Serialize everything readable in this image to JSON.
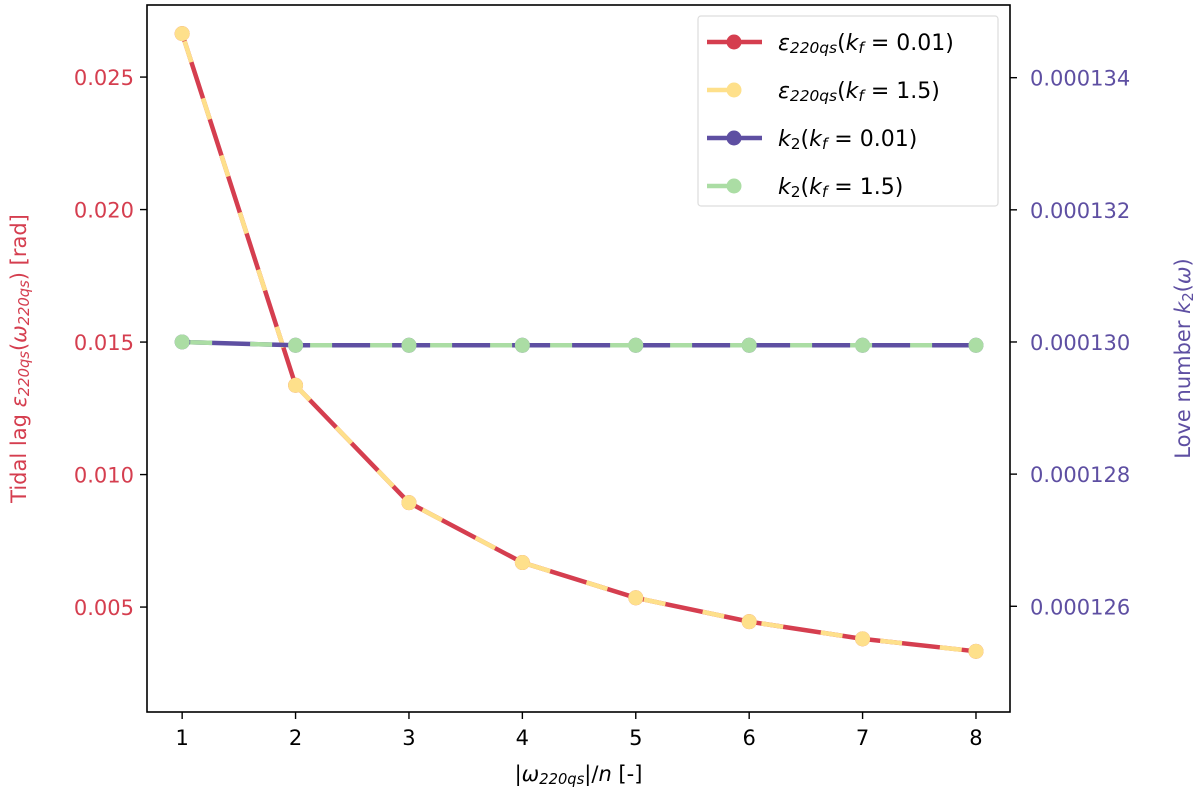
{
  "chart_data": {
    "type": "line",
    "x": [
      1,
      2,
      3,
      4,
      5,
      6,
      7,
      8
    ],
    "xlim": [
      0.69,
      8.3
    ],
    "xticks": [
      "1",
      "2",
      "3",
      "4",
      "5",
      "6",
      "7",
      "8"
    ],
    "xlabel": [
      {
        "t": "|"
      },
      {
        "t": "ω",
        "i": true
      },
      {
        "t": "220qs",
        "i": true,
        "sub": true
      },
      {
        "t": "|/"
      },
      {
        "t": "n",
        "i": true
      },
      {
        "t": " [-]"
      }
    ],
    "left_axis": {
      "ylim": [
        0.00104,
        0.02772
      ],
      "ticks": [
        0.005,
        0.01,
        0.015,
        0.02,
        0.025
      ],
      "tick_labels": [
        "0.005",
        "0.010",
        "0.015",
        "0.020",
        "0.025"
      ],
      "color": "#d53e4f",
      "label": [
        {
          "t": "Tidal lag "
        },
        {
          "t": "ε",
          "i": true
        },
        {
          "t": "220qs",
          "i": true,
          "sub": true
        },
        {
          "t": "("
        },
        {
          "t": "ω",
          "i": true
        },
        {
          "t": "220qs",
          "i": true,
          "sub": true
        },
        {
          "t": ") [rad]"
        }
      ]
    },
    "right_axis": {
      "ylim": [
        0.0001244,
        0.0001351
      ],
      "ticks": [
        0.000126,
        0.000128,
        0.00013,
        0.000132,
        0.000134
      ],
      "tick_labels": [
        "0.000126",
        "0.000128",
        "0.000130",
        "0.000132",
        "0.000134"
      ],
      "color": "#5e4fa2",
      "label": [
        {
          "t": "Love number "
        },
        {
          "t": "k",
          "i": true
        },
        {
          "t": "2",
          "sub": true
        },
        {
          "t": "("
        },
        {
          "t": "ω",
          "i": true
        },
        {
          "t": ")"
        }
      ]
    },
    "series": [
      {
        "name": [
          {
            "t": "ε",
            "i": true
          },
          {
            "t": "220qs",
            "i": true,
            "sub": true
          },
          {
            "t": "("
          },
          {
            "t": "k",
            "i": true
          },
          {
            "t": "f",
            "i": true,
            "sub": true
          },
          {
            "t": " = 0.01)"
          }
        ],
        "axis": "left",
        "color": "#d53e4f",
        "style": "solid",
        "values": [
          0.02664,
          0.01337,
          0.00894,
          0.00668,
          0.00535,
          0.00445,
          0.0038,
          0.00333
        ]
      },
      {
        "name": [
          {
            "t": "ε",
            "i": true
          },
          {
            "t": "220qs",
            "i": true,
            "sub": true
          },
          {
            "t": "("
          },
          {
            "t": "k",
            "i": true
          },
          {
            "t": "f",
            "i": true,
            "sub": true
          },
          {
            "t": " = 1.5)"
          }
        ],
        "axis": "left",
        "color": "#fee08b",
        "style": "dashed",
        "values": [
          0.02664,
          0.01337,
          0.00894,
          0.00668,
          0.00535,
          0.00445,
          0.0038,
          0.00333
        ]
      },
      {
        "name": [
          {
            "t": "k",
            "i": true
          },
          {
            "t": "2",
            "sub": true
          },
          {
            "t": "("
          },
          {
            "t": "k",
            "i": true
          },
          {
            "t": "f",
            "i": true,
            "sub": true
          },
          {
            "t": " = 0.01)"
          }
        ],
        "axis": "right",
        "color": "#5e4fa2",
        "style": "solid",
        "values": [
          0.00013,
          0.00012995,
          0.00012995,
          0.00012995,
          0.00012995,
          0.00012995,
          0.00012995,
          0.00012995
        ]
      },
      {
        "name": [
          {
            "t": "k",
            "i": true
          },
          {
            "t": "2",
            "sub": true
          },
          {
            "t": "("
          },
          {
            "t": "k",
            "i": true
          },
          {
            "t": "f",
            "i": true,
            "sub": true
          },
          {
            "t": " = 1.5)"
          }
        ],
        "axis": "right",
        "color": "#abdda4",
        "style": "dashed",
        "values": [
          0.00013,
          0.00012995,
          0.00012995,
          0.00012995,
          0.00012995,
          0.00012995,
          0.00012995,
          0.00012995
        ]
      }
    ],
    "legend": "top-right",
    "grid": false
  }
}
